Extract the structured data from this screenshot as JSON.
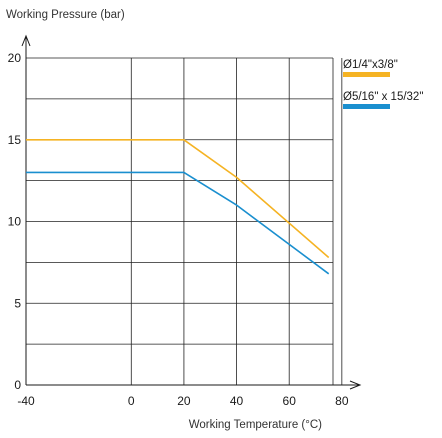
{
  "chart_data": {
    "type": "line",
    "xlabel": "Working Temperature (°C)",
    "ylabel": "Working Pressure (bar)",
    "xlim": [
      -40,
      85
    ],
    "ylim": [
      0,
      20
    ],
    "xticks": [
      -40,
      0,
      20,
      40,
      60,
      80
    ],
    "yticks": [
      0,
      5,
      10,
      15,
      20
    ],
    "grid": true,
    "legend_position": "right",
    "series": [
      {
        "name": "Ø1/4\"x3/8\"",
        "color": "#f5b323",
        "x": [
          -40,
          20,
          40,
          75
        ],
        "y": [
          15,
          15,
          12.7,
          7.8
        ]
      },
      {
        "name": "Ø5/16\" x 15/32\"",
        "color": "#1a8fcf",
        "x": [
          -40,
          20,
          40,
          75
        ],
        "y": [
          13,
          13,
          11,
          6.8
        ]
      }
    ]
  }
}
